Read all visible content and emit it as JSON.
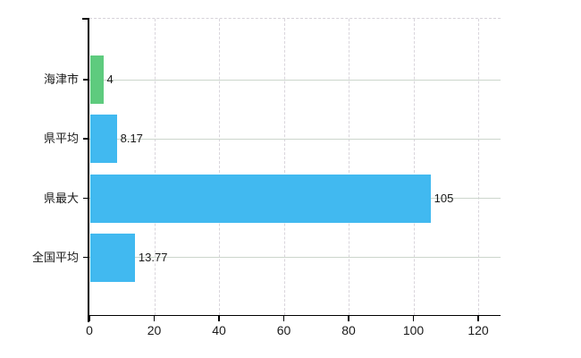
{
  "chart_data": {
    "type": "bar",
    "orientation": "horizontal",
    "title": "",
    "xlabel": "",
    "ylabel": "",
    "categories": [
      "海津市",
      "県平均",
      "県最大",
      "全国平均"
    ],
    "values": [
      4,
      8.17,
      105,
      13.77
    ],
    "value_labels": [
      "4",
      "8.17",
      "105",
      "13.77"
    ],
    "bar_colors": [
      "#5ecb7e",
      "#41b9f0",
      "#41b9f0",
      "#41b9f0"
    ],
    "x_ticks": [
      0,
      20,
      40,
      60,
      80,
      100,
      120
    ],
    "x_tick_labels": [
      "0",
      "20",
      "40",
      "60",
      "80",
      "100",
      "120"
    ],
    "xlim": [
      0,
      126.9
    ],
    "grid": true,
    "legend": false,
    "colors": {
      "background": "#ffffff",
      "axis": "#000000",
      "horizontal_gridline": "#ccd6cc",
      "vertical_gridline": "#d9d5dc",
      "top_border": "#d6d2d9",
      "text": "#1a1a1a"
    }
  }
}
